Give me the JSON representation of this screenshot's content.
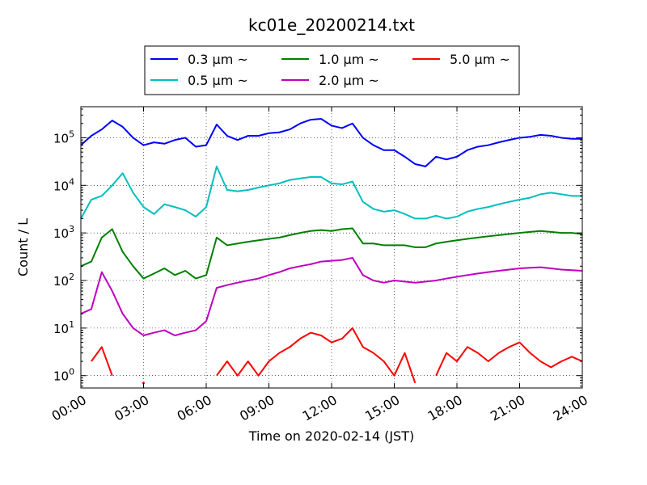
{
  "chart_data": {
    "type": "line",
    "title": "kc01e_20200214.txt",
    "xlabel": "Time on 2020-02-14 (JST)",
    "ylabel": "Count / L",
    "yscale": "log",
    "xlim": [
      "00:00",
      "24:00"
    ],
    "ylim": [
      0.55,
      450000
    ],
    "grid": true,
    "legend_position": "top-center",
    "x_ticks": [
      "00:00",
      "03:00",
      "06:00",
      "09:00",
      "12:00",
      "15:00",
      "18:00",
      "21:00",
      "24:00"
    ],
    "y_ticks": [
      "10^0",
      "10^1",
      "10^2",
      "10^3",
      "10^4",
      "10^5"
    ],
    "x": [
      "00:00",
      "00:30",
      "01:00",
      "01:30",
      "02:00",
      "02:30",
      "03:00",
      "03:30",
      "04:00",
      "04:30",
      "05:00",
      "05:30",
      "06:00",
      "06:30",
      "07:00",
      "07:30",
      "08:00",
      "08:30",
      "09:00",
      "09:30",
      "10:00",
      "10:30",
      "11:00",
      "11:30",
      "12:00",
      "12:30",
      "13:00",
      "13:30",
      "14:00",
      "14:30",
      "15:00",
      "15:30",
      "16:00",
      "16:30",
      "17:00",
      "17:30",
      "18:00",
      "18:30",
      "19:00",
      "19:30",
      "20:00",
      "20:30",
      "21:00",
      "21:30",
      "22:00",
      "22:30",
      "23:00",
      "23:30",
      "24:00"
    ],
    "series": [
      {
        "name": "0.3 μm ~",
        "color": "#0000ff",
        "values": [
          70000,
          110000,
          150000,
          230000,
          170000,
          100000,
          70000,
          80000,
          75000,
          90000,
          100000,
          65000,
          70000,
          190000,
          110000,
          90000,
          110000,
          110000,
          125000,
          130000,
          150000,
          200000,
          240000,
          250000,
          180000,
          160000,
          200000,
          100000,
          70000,
          55000,
          55000,
          40000,
          28000,
          25000,
          40000,
          35000,
          40000,
          55000,
          65000,
          70000,
          80000,
          90000,
          100000,
          105000,
          115000,
          110000,
          100000,
          95000,
          95000
        ]
      },
      {
        "name": "0.5 μm ~",
        "color": "#00bfbf",
        "values": [
          2000,
          5000,
          6000,
          10000,
          18000,
          7000,
          3500,
          2500,
          4000,
          3500,
          3000,
          2200,
          3500,
          25000,
          8000,
          7500,
          8000,
          9000,
          10000,
          11000,
          13000,
          14000,
          15000,
          15000,
          11000,
          10500,
          12000,
          4500,
          3200,
          2800,
          3000,
          2500,
          2000,
          2000,
          2300,
          2000,
          2200,
          2800,
          3200,
          3500,
          4000,
          4500,
          5000,
          5500,
          6500,
          7000,
          6500,
          6000,
          6000
        ]
      },
      {
        "name": "1.0 μm ~",
        "color": "#008000",
        "values": [
          200,
          250,
          800,
          1200,
          400,
          200,
          110,
          140,
          180,
          130,
          160,
          110,
          130,
          800,
          550,
          600,
          650,
          700,
          750,
          800,
          900,
          1000,
          1100,
          1150,
          1100,
          1200,
          1250,
          600,
          600,
          550,
          550,
          550,
          500,
          500,
          600,
          650,
          700,
          750,
          800,
          850,
          900,
          950,
          1000,
          1050,
          1100,
          1050,
          1000,
          1000,
          950
        ]
      },
      {
        "name": "2.0 μm ~",
        "color": "#bf00bf",
        "values": [
          20,
          25,
          150,
          60,
          20,
          10,
          7,
          8,
          9,
          7,
          8,
          9,
          14,
          70,
          80,
          90,
          100,
          110,
          130,
          150,
          180,
          200,
          220,
          250,
          260,
          270,
          300,
          130,
          100,
          90,
          100,
          95,
          90,
          95,
          100,
          110,
          120,
          130,
          140,
          150,
          160,
          170,
          180,
          185,
          190,
          180,
          170,
          165,
          160
        ]
      },
      {
        "name": "5.0 μm ~",
        "color": "#ff0000",
        "values": [
          null,
          2,
          4,
          1,
          null,
          null,
          0.7,
          null,
          null,
          null,
          null,
          null,
          null,
          1,
          2,
          1,
          2,
          1,
          2,
          3,
          4,
          6,
          8,
          7,
          5,
          6,
          10,
          4,
          3,
          2,
          1,
          3,
          0.7,
          null,
          1,
          3,
          2,
          4,
          3,
          2,
          3,
          4,
          5,
          3,
          2,
          1.5,
          2,
          2.5,
          2
        ]
      }
    ]
  }
}
